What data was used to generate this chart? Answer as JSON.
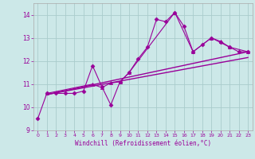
{
  "xlabel": "Windchill (Refroidissement éolien,°C)",
  "bg_color": "#cce8e8",
  "grid_color": "#aacccc",
  "line_color": "#990099",
  "xlim": [
    -0.5,
    23.5
  ],
  "ylim": [
    9,
    14.5
  ],
  "xticks": [
    0,
    1,
    2,
    3,
    4,
    5,
    6,
    7,
    8,
    9,
    10,
    11,
    12,
    13,
    14,
    15,
    16,
    17,
    18,
    19,
    20,
    21,
    22,
    23
  ],
  "yticks": [
    9,
    10,
    11,
    12,
    13,
    14
  ],
  "series": [
    {
      "x": [
        0,
        1,
        2,
        3,
        4,
        5,
        6,
        7,
        8,
        9,
        10,
        11,
        12,
        13,
        14,
        15,
        16,
        17,
        18,
        19,
        20,
        21,
        22,
        23
      ],
      "y": [
        9.5,
        10.6,
        10.6,
        10.6,
        10.6,
        10.7,
        11.8,
        10.9,
        10.1,
        11.1,
        11.5,
        12.1,
        12.6,
        13.8,
        13.7,
        14.1,
        13.5,
        12.4,
        12.7,
        13.0,
        12.8,
        12.6,
        12.4,
        12.4
      ],
      "marker": "D",
      "markersize": 2.5,
      "linewidth": 0.8
    },
    {
      "x": [
        1,
        23
      ],
      "y": [
        10.55,
        12.4
      ],
      "marker": null,
      "markersize": 0,
      "linewidth": 1.0
    },
    {
      "x": [
        1,
        23
      ],
      "y": [
        10.55,
        12.15
      ],
      "marker": null,
      "markersize": 0,
      "linewidth": 1.0
    },
    {
      "x": [
        1,
        6,
        7,
        8,
        9,
        10,
        15,
        17,
        19,
        20,
        21,
        23
      ],
      "y": [
        10.6,
        11.0,
        10.85,
        11.05,
        11.1,
        11.5,
        14.1,
        12.4,
        13.0,
        12.85,
        12.6,
        12.4
      ],
      "marker": "^",
      "markersize": 3,
      "linewidth": 0.8
    }
  ]
}
